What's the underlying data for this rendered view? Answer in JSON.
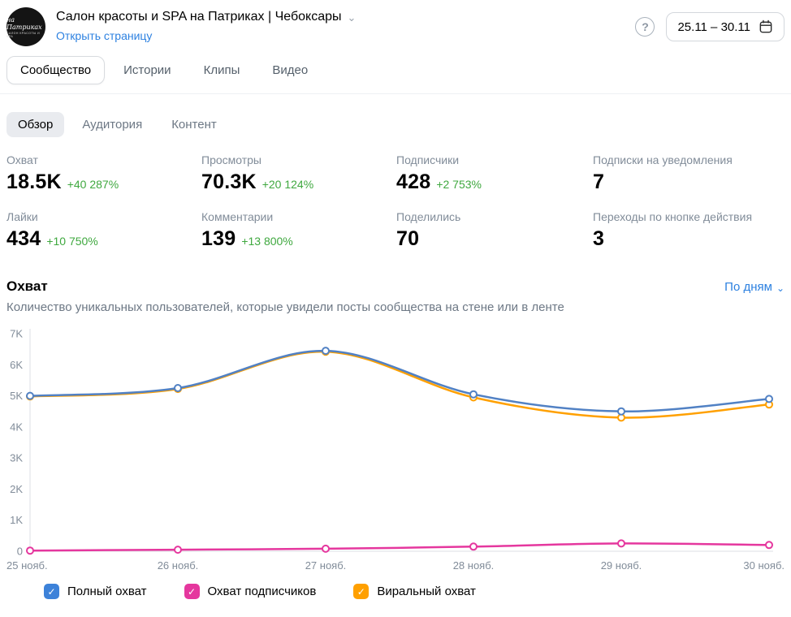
{
  "header": {
    "avatar_line1": "на Патриках",
    "avatar_line2": "салон красоты и SPA",
    "title": "Салон красоты и SPA на Патриках | Чебоксары",
    "open_page_link": "Открыть страницу",
    "date_range": "25.11 – 30.11"
  },
  "icons": {
    "chevron_down": "⌄",
    "help": "?",
    "check": "✓"
  },
  "tabs": {
    "items": [
      {
        "label": "Сообщество",
        "active": true
      },
      {
        "label": "Истории",
        "active": false
      },
      {
        "label": "Клипы",
        "active": false
      },
      {
        "label": "Видео",
        "active": false
      }
    ]
  },
  "subtabs": {
    "items": [
      {
        "label": "Обзор",
        "active": true
      },
      {
        "label": "Аудитория",
        "active": false
      },
      {
        "label": "Контент",
        "active": false
      }
    ]
  },
  "stats": {
    "items": [
      {
        "label": "Охват",
        "value": "18.5K",
        "delta": "+40 287%"
      },
      {
        "label": "Просмотры",
        "value": "70.3K",
        "delta": "+20 124%"
      },
      {
        "label": "Подписчики",
        "value": "428",
        "delta": "+2 753%"
      },
      {
        "label": "Подписки на уведомления",
        "value": "7",
        "delta": ""
      },
      {
        "label": "Лайки",
        "value": "434",
        "delta": "+10 750%"
      },
      {
        "label": "Комментарии",
        "value": "139",
        "delta": "+13 800%"
      },
      {
        "label": "Поделились",
        "value": "70",
        "delta": ""
      },
      {
        "label": "Переходы по кнопке действия",
        "value": "3",
        "delta": ""
      }
    ]
  },
  "section": {
    "title": "Охват",
    "subtitle": "Количество уникальных пользователей, которые увидели посты сообщества на стене или в ленте",
    "period_label": "По дням"
  },
  "chart_data": {
    "type": "line",
    "title": "Охват",
    "categories": [
      "25 нояб.",
      "26 нояб.",
      "27 нояб.",
      "28 нояб.",
      "29 нояб.",
      "30 нояб."
    ],
    "series": [
      {
        "name": "Полный охват",
        "color": "#5181c4",
        "values": [
          5000,
          5250,
          6450,
          5050,
          4500,
          4900
        ]
      },
      {
        "name": "Охват подписчиков",
        "color": "#e5379e",
        "values": [
          20,
          50,
          80,
          150,
          250,
          200
        ]
      },
      {
        "name": "Виральный охват",
        "color": "#ffa000",
        "values": [
          4980,
          5220,
          6420,
          4950,
          4300,
          4720
        ]
      }
    ],
    "ylim": [
      0,
      7000
    ],
    "yticks": [
      {
        "label": "7K",
        "value": 7000
      },
      {
        "label": "6K",
        "value": 6000
      },
      {
        "label": "5K",
        "value": 5000
      },
      {
        "label": "4K",
        "value": 4000
      },
      {
        "label": "3K",
        "value": 3000
      },
      {
        "label": "2K",
        "value": 2000
      },
      {
        "label": "1K",
        "value": 1000
      },
      {
        "label": "0",
        "value": 0
      }
    ],
    "grid": false,
    "legend_position": "bottom"
  },
  "legend": {
    "items": [
      {
        "label": "Полный охват",
        "color": "#3d82d9"
      },
      {
        "label": "Охват подписчиков",
        "color": "#e5379e"
      },
      {
        "label": "Виральный охват",
        "color": "#ffa000"
      }
    ]
  },
  "colors": {
    "positive": "#3fa83f",
    "link": "#2d81e0",
    "axis": "#dcdfe4",
    "tick_text": "#818c99"
  }
}
